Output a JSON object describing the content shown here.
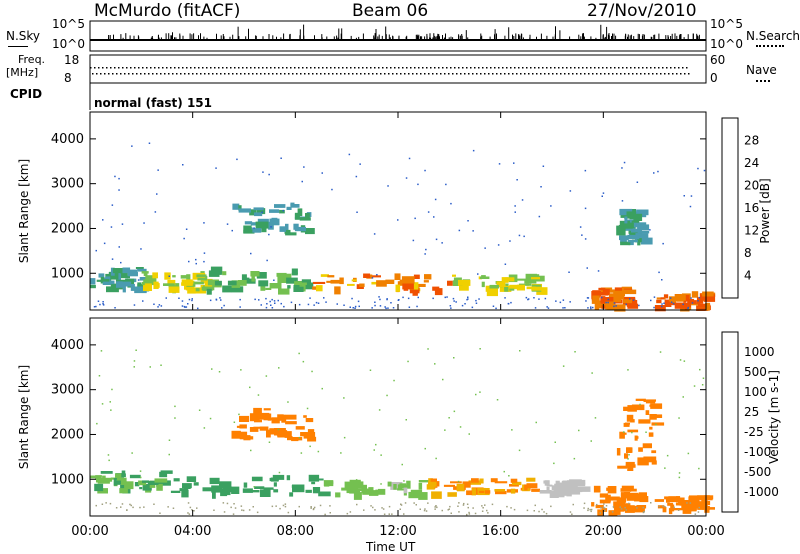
{
  "header": {
    "station": "McMurdo (fitACF)",
    "beam": "Beam 06",
    "date": "27/Nov/2010"
  },
  "top_panels": {
    "nsky_label": "N.Sky",
    "nsky_ticks": [
      "10^5",
      "10^0"
    ],
    "nsearch_label": "N.Search",
    "nsearch_ticks": [
      "10^5",
      "10^0"
    ],
    "freq_label_1": "Freq.",
    "freq_label_2": "[MHz]",
    "freq_ticks": [
      "18",
      "8"
    ],
    "nave_label": "Nave",
    "nave_ticks": [
      "60",
      "0"
    ],
    "cpid_label": "CPID",
    "cpid_value": "normal (fast) 151"
  },
  "colors": {
    "power_scale": [
      "#0000ff",
      "#2a5cc8",
      "#4a9bb0",
      "#3aa060",
      "#74c050",
      "#f0d000",
      "#f08000",
      "#f05000",
      "#ff0000"
    ],
    "velocity_scale": [
      "#ff0000",
      "#f04000",
      "#ff8000",
      "#f0b000",
      "#c0c0c0",
      "#74c050",
      "#3aa060",
      "#2a5cc8",
      "#0040c0"
    ]
  },
  "chart_data": [
    {
      "type": "heatmap",
      "name": "power",
      "ylabel": "Slant Range [km]",
      "yticks": [
        "1000",
        "2000",
        "3000",
        "4000"
      ],
      "ylim": [
        180,
        4600
      ],
      "colorbar_label": "Power [dB]",
      "colorbar_ticks": [
        "4",
        "8",
        "12",
        "16",
        "20",
        "24",
        "28"
      ],
      "bands": [
        {
          "x": [
            0.0,
            2.0
          ],
          "range": [
            700,
            1200
          ],
          "value": 12
        },
        {
          "x": [
            2.0,
            4.5
          ],
          "range": [
            650,
            1050
          ],
          "value": 20
        },
        {
          "x": [
            4.5,
            8.5
          ],
          "range": [
            650,
            1150
          ],
          "value": 16
        },
        {
          "x": [
            8.5,
            14.0
          ],
          "range": [
            650,
            1000
          ],
          "value": 26
        },
        {
          "x": [
            14.0,
            17.5
          ],
          "range": [
            650,
            1000
          ],
          "value": 20
        },
        {
          "x": [
            19.5,
            21.0
          ],
          "range": [
            280,
            700
          ],
          "value": 28
        },
        {
          "x": [
            22.0,
            24.0
          ],
          "range": [
            280,
            600
          ],
          "value": 28
        },
        {
          "x": [
            5.5,
            8.5
          ],
          "range": [
            1900,
            2600
          ],
          "value": 12
        },
        {
          "x": [
            20.5,
            21.5
          ],
          "range": [
            1700,
            2500
          ],
          "value": 12
        }
      ]
    },
    {
      "type": "heatmap",
      "name": "velocity",
      "xlabel": "Time UT",
      "xticks": [
        "00:00",
        "04:00",
        "08:00",
        "12:00",
        "16:00",
        "20:00",
        "00:00"
      ],
      "ylabel": "Slant Range [km]",
      "yticks": [
        "1000",
        "2000",
        "3000",
        "4000"
      ],
      "ylim": [
        180,
        4600
      ],
      "colorbar_label": "Velocity [m s-1]",
      "colorbar_ticks": [
        "1000",
        "500",
        "100",
        "25",
        "-25",
        "-100",
        "-500",
        "-1000"
      ],
      "bands": [
        {
          "x": [
            0.0,
            3.0
          ],
          "range": [
            800,
            1200
          ],
          "value": 100
        },
        {
          "x": [
            3.0,
            9.0
          ],
          "range": [
            700,
            1100
          ],
          "value": 300
        },
        {
          "x": [
            9.0,
            13.0
          ],
          "range": [
            700,
            1000
          ],
          "value": 60
        },
        {
          "x": [
            13.0,
            17.5
          ],
          "range": [
            700,
            1050
          ],
          "value": -100
        },
        {
          "x": [
            17.5,
            19.0
          ],
          "range": [
            700,
            1000
          ],
          "value": 0
        },
        {
          "x": [
            19.5,
            21.5
          ],
          "range": [
            300,
            900
          ],
          "value": -200
        },
        {
          "x": [
            22.0,
            24.0
          ],
          "range": [
            350,
            650
          ],
          "value": -200
        },
        {
          "x": [
            5.5,
            8.5
          ],
          "range": [
            1900,
            2600
          ],
          "value": -150
        },
        {
          "x": [
            20.5,
            22.0
          ],
          "range": [
            1300,
            2800
          ],
          "value": -200
        }
      ]
    }
  ]
}
